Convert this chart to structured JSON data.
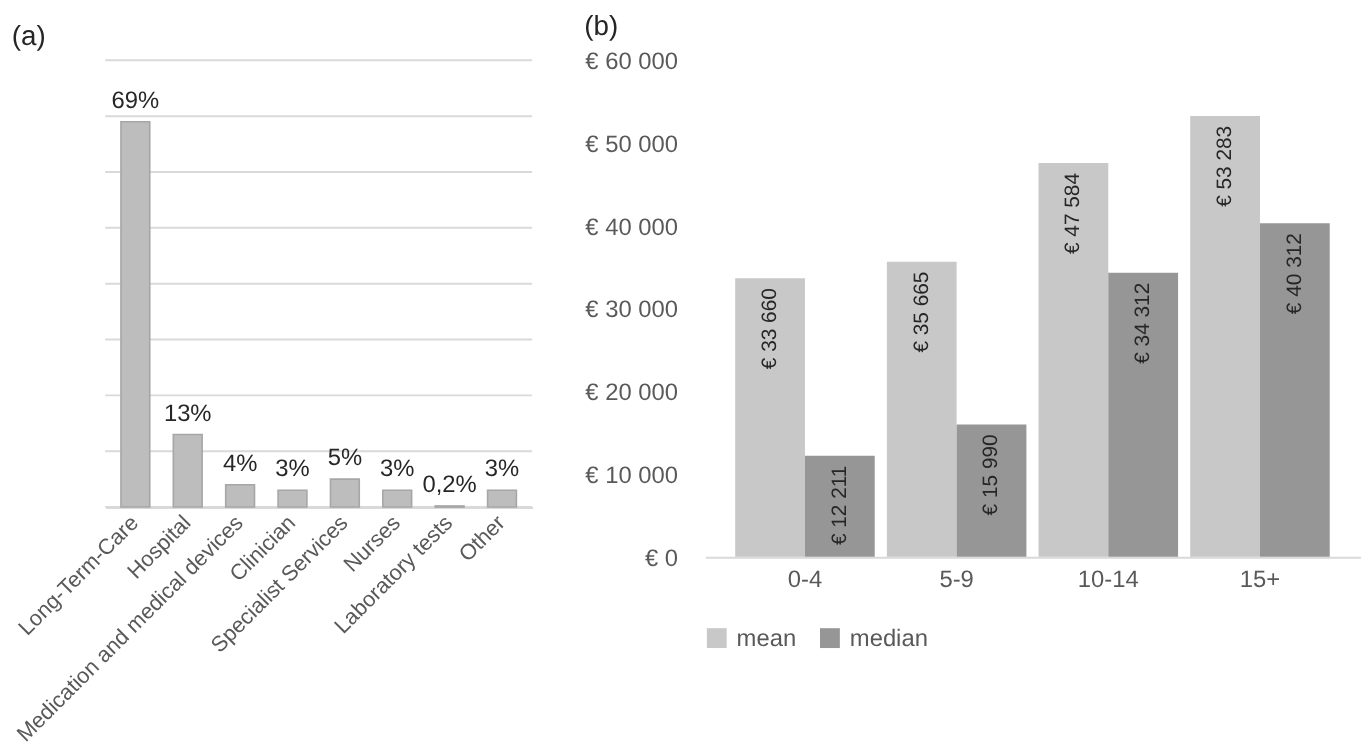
{
  "chart_data": [
    {
      "type": "bar",
      "title": "(a)",
      "categories": [
        "Long-Term-Care",
        "Hospital",
        "Medication and medical devices",
        "Clinician",
        "Specialist Services",
        "Nurses",
        "Laboratory tests",
        "Other"
      ],
      "values": [
        69,
        13,
        4,
        3,
        5,
        3,
        0.2,
        3
      ],
      "color": "#bdbdbd",
      "value_labels": [
        "69%",
        "13%",
        "4%",
        "3%",
        "5%",
        "3%",
        "0,2%",
        "3%"
      ],
      "ylim": [
        0,
        80
      ],
      "yticks": [
        {
          "value": 0,
          "label": null
        },
        {
          "value": 10,
          "label": null
        },
        {
          "value": 20,
          "label": null
        },
        {
          "value": 30,
          "label": null
        },
        {
          "value": 40,
          "label": null
        },
        {
          "value": 50,
          "label": null
        },
        {
          "value": 60,
          "label": null
        },
        {
          "value": 70,
          "label": null
        },
        {
          "value": 80,
          "label": null
        }
      ],
      "tick_labels": "x",
      "grid": "y",
      "legend": false
    },
    {
      "type": "bar",
      "title": "(b)",
      "categories": [
        "0-4",
        "5-9",
        "10-14",
        "15+"
      ],
      "series": [
        {
          "name": "mean",
          "color": "#c8c8c8",
          "values": [
            33660,
            35665,
            47584,
            53283
          ],
          "value_labels": [
            "€ 33 660",
            "€ 35 665",
            "€ 47 584",
            "€ 53 283"
          ]
        },
        {
          "name": "median",
          "color": "#969696",
          "values": [
            12211,
            15990,
            34312,
            40312
          ],
          "value_labels": [
            "€ 12 211",
            "€ 15 990",
            "€ 34 312",
            "€ 40 312"
          ]
        }
      ],
      "ylim": [
        0,
        60000
      ],
      "yticks": [
        {
          "value": 0,
          "label": "€ 0"
        },
        {
          "value": 10000,
          "label": "€ 10 000"
        },
        {
          "value": 20000,
          "label": "€ 20 000"
        },
        {
          "value": 30000,
          "label": "€ 30 000"
        },
        {
          "value": 40000,
          "label": "€ 40 000"
        },
        {
          "value": 50000,
          "label": "€ 50 000"
        },
        {
          "value": 60000,
          "label": "€ 60 000"
        }
      ],
      "grid": false,
      "legend": "bottom"
    }
  ]
}
